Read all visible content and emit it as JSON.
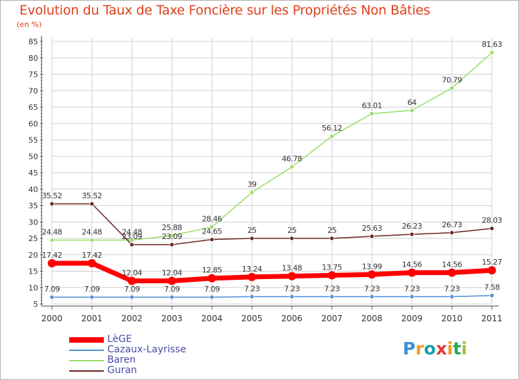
{
  "title": "Evolution du Taux de Taxe Foncière sur les Propriétés Non Bâties",
  "unit_label": "(en %)",
  "logo_text": "Proxiti",
  "colors": {
    "title": "#e0401a",
    "axis_text": "#333333",
    "grid": "#d0d0d0",
    "legend_text": "#4a4aa8"
  },
  "chart_data": {
    "type": "line",
    "title": "Evolution du Taux de Taxe Foncière sur les Propriétés Non Bâties",
    "ylabel": "(en %)",
    "xlabel": "",
    "ylim": [
      5,
      85
    ],
    "yticks": [
      5,
      10,
      15,
      20,
      25,
      30,
      35,
      40,
      45,
      50,
      55,
      60,
      65,
      70,
      75,
      80,
      85
    ],
    "grid": true,
    "legend_position": "bottom-left",
    "x": [
      "2000",
      "2001",
      "2002",
      "2003",
      "2004",
      "2005",
      "2006",
      "2007",
      "2008",
      "2009",
      "2010",
      "2011"
    ],
    "series": [
      {
        "name": "LèGE",
        "color": "#ff0000",
        "values": [
          17.42,
          17.42,
          12.04,
          12.04,
          12.85,
          13.24,
          13.48,
          13.75,
          13.99,
          14.56,
          14.56,
          15.27
        ],
        "labels": [
          "17.42",
          "17.42",
          "12.04",
          "12.04",
          "12.85",
          "13.24",
          "13.48",
          "13.75",
          "13.99",
          "14.56",
          "14.56",
          "15.27"
        ]
      },
      {
        "name": "Cazaux-Layrisse",
        "color": "#4d8fd1",
        "values": [
          7.09,
          7.09,
          7.09,
          7.09,
          7.09,
          7.23,
          7.23,
          7.23,
          7.23,
          7.23,
          7.23,
          7.58
        ],
        "labels": [
          "7.09",
          "7.09",
          "7.09",
          "7.09",
          "7.09",
          "7.23",
          "7.23",
          "7.23",
          "7.23",
          "7.23",
          "7.23",
          "7.58"
        ]
      },
      {
        "name": "Baren",
        "color": "#99dd66",
        "values": [
          24.48,
          24.48,
          24.48,
          25.88,
          28.46,
          39,
          46.78,
          56.12,
          63.01,
          64,
          70.79,
          81.63
        ],
        "labels": [
          "24.48",
          "24.48",
          "24.48",
          "25.88",
          "28.46",
          "39",
          "46.78",
          "56.12",
          "63.01",
          "64",
          "70.79",
          "81.63"
        ]
      },
      {
        "name": "Guran",
        "color": "#6b2525",
        "values": [
          35.52,
          35.52,
          23.09,
          23.09,
          24.65,
          25,
          25,
          25,
          25.63,
          26.23,
          26.73,
          28.03
        ],
        "labels": [
          "35.52",
          "35.52",
          "23.09",
          "23.09",
          "24.65",
          "25",
          "25",
          "25",
          "25.63",
          "26.23",
          "26.73",
          "28.03"
        ]
      }
    ]
  }
}
